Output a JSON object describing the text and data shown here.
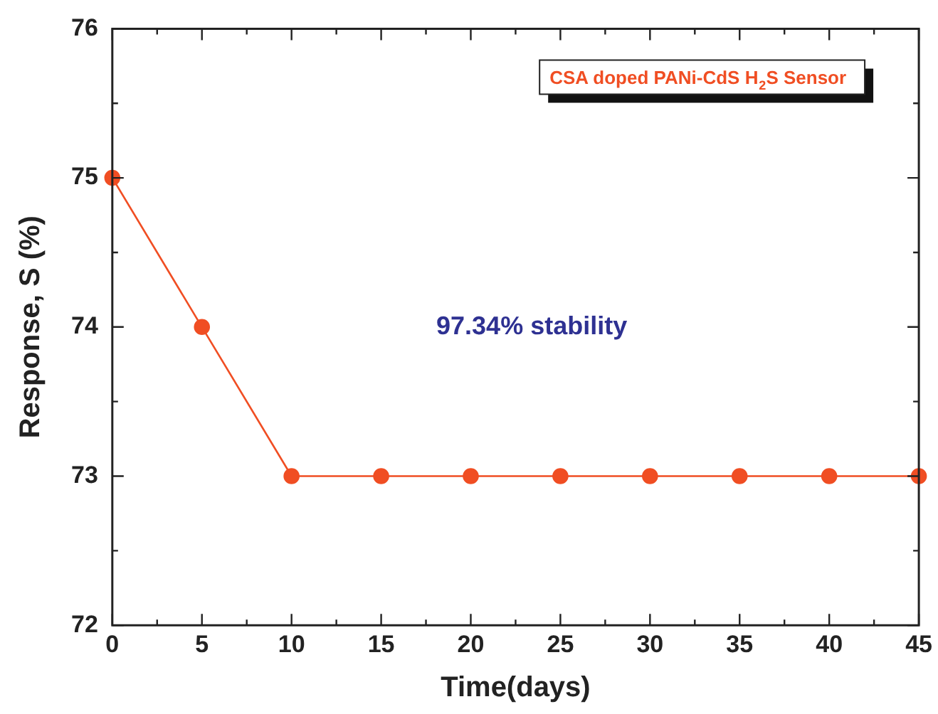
{
  "chart_data": {
    "type": "line",
    "xlabel": "Time(days)",
    "ylabel": "Response, S (%)",
    "x": [
      0,
      5,
      10,
      15,
      20,
      25,
      30,
      35,
      40,
      45
    ],
    "series": [
      {
        "name": "CSA doped PANi-CdS H$_{2}$S Sensor",
        "color": "#f04e23",
        "values": [
          75,
          74,
          73,
          73,
          73,
          73,
          73,
          73,
          73,
          73
        ]
      }
    ],
    "xlim": [
      0,
      45
    ],
    "xticks": [
      0,
      5,
      10,
      15,
      20,
      25,
      30,
      35,
      40,
      45
    ],
    "ylim": [
      72,
      76
    ],
    "yticks": [
      72,
      73,
      74,
      75,
      76
    ],
    "annotations": [
      "97.34% stability"
    ],
    "grid": false,
    "legend": "top right",
    "marker": "circle",
    "line_style": "solid"
  }
}
